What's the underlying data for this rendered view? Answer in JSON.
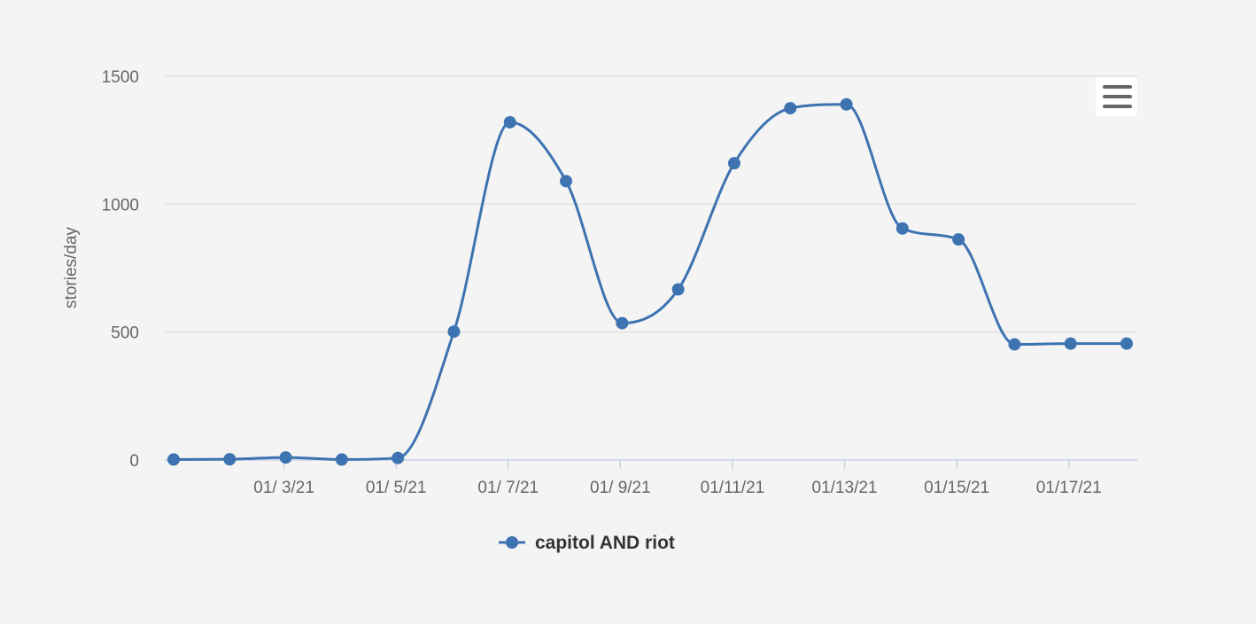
{
  "menu_icon": "hamburger-menu-icon",
  "colors": {
    "series": "#3d73b0",
    "grid": "#e2e2e2",
    "axis": "#c6d1e3",
    "background": "#f4f4f4",
    "menu_bars": "#666666"
  },
  "chart_data": {
    "type": "line",
    "smooth": true,
    "title": "",
    "xlabel": "",
    "ylabel": "stories/day",
    "ylim": [
      0,
      1500
    ],
    "yticks": [
      0,
      500,
      1000,
      1500
    ],
    "x": [
      "2021-01-01",
      "2021-01-02",
      "2021-01-03",
      "2021-01-04",
      "2021-01-05",
      "2021-01-06",
      "2021-01-07",
      "2021-01-08",
      "2021-01-09",
      "2021-01-10",
      "2021-01-11",
      "2021-01-12",
      "2021-01-13",
      "2021-01-14",
      "2021-01-15",
      "2021-01-16",
      "2021-01-17",
      "2021-01-18"
    ],
    "xticks": [
      {
        "x": "2021-01-03",
        "label": "01/ 3/21"
      },
      {
        "x": "2021-01-05",
        "label": "01/ 5/21"
      },
      {
        "x": "2021-01-07",
        "label": "01/ 7/21"
      },
      {
        "x": "2021-01-09",
        "label": "01/ 9/21"
      },
      {
        "x": "2021-01-11",
        "label": "01/11/21"
      },
      {
        "x": "2021-01-13",
        "label": "01/13/21"
      },
      {
        "x": "2021-01-15",
        "label": "01/15/21"
      },
      {
        "x": "2021-01-17",
        "label": "01/17/21"
      }
    ],
    "grid": true,
    "legend_position": "bottom-center",
    "series": [
      {
        "name": "capitol AND riot",
        "values": [
          2,
          3,
          10,
          2,
          8,
          502,
          1320,
          1090,
          535,
          667,
          1160,
          1375,
          1390,
          905,
          862,
          452,
          455,
          455
        ]
      }
    ]
  }
}
